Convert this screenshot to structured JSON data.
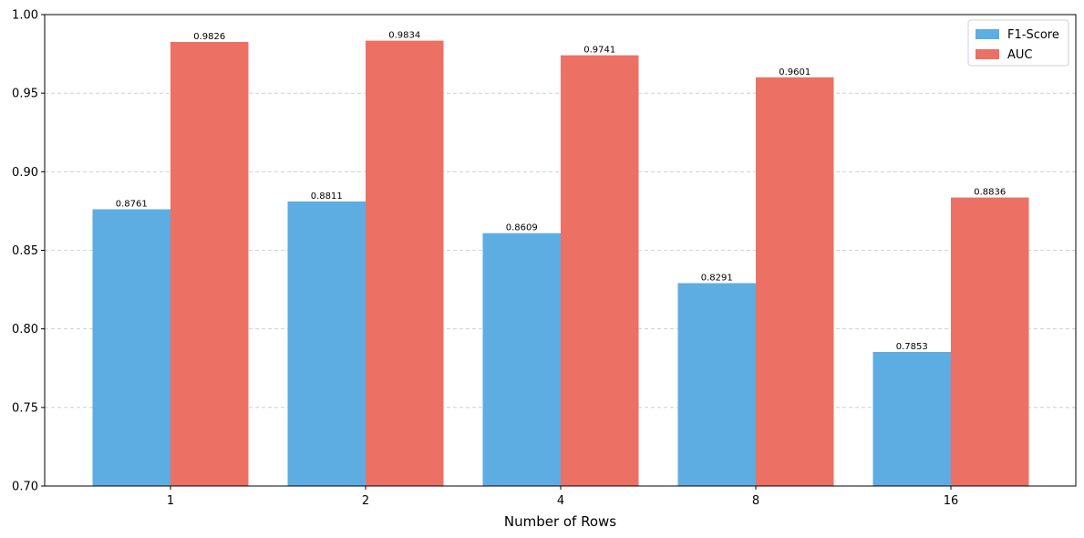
{
  "chart_data": {
    "type": "bar",
    "categories": [
      "1",
      "2",
      "4",
      "8",
      "16"
    ],
    "series": [
      {
        "name": "F1-Score",
        "values": [
          0.8761,
          0.8811,
          0.8609,
          0.8291,
          0.7853
        ],
        "color": "#5DADE2"
      },
      {
        "name": "AUC",
        "values": [
          0.9826,
          0.9834,
          0.9741,
          0.9601,
          0.8836
        ],
        "color": "#EC7063"
      }
    ],
    "title": "",
    "xlabel": "Number of Rows",
    "ylabel": "",
    "ylim": [
      0.7,
      1.0
    ],
    "yticks": [
      "0.70",
      "0.75",
      "0.80",
      "0.85",
      "0.90",
      "0.95",
      "1.00"
    ],
    "grid": "y-dashed",
    "legend_position": "top-right"
  }
}
